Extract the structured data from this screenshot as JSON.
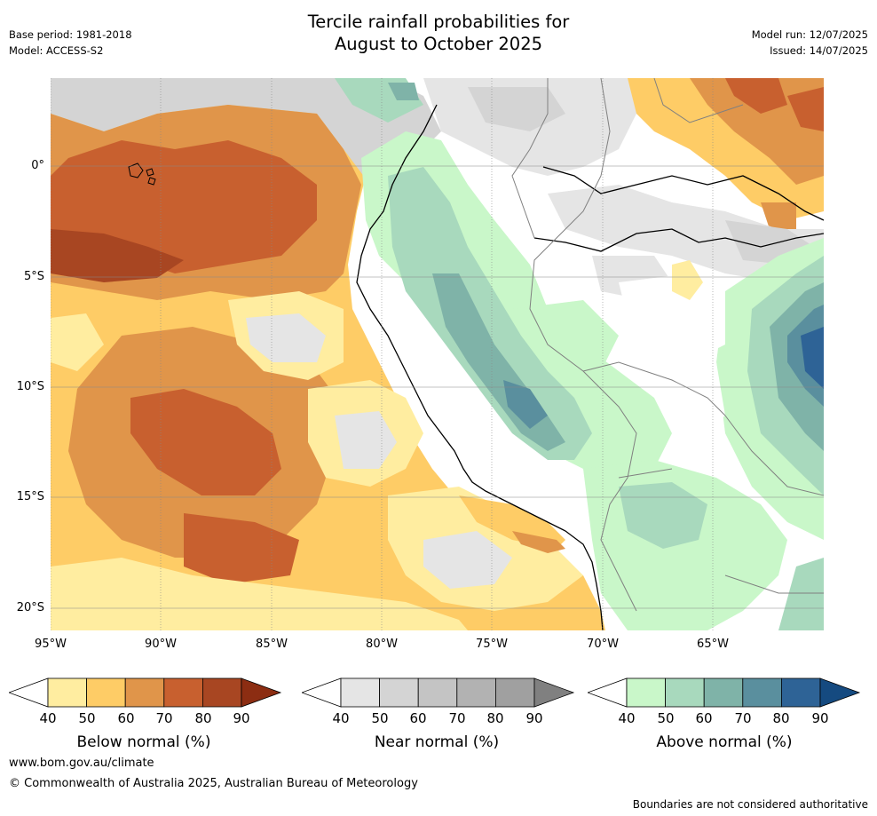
{
  "title": {
    "line1": "Tercile rainfall probabilities for",
    "line2": "August to October 2025"
  },
  "meta_left": {
    "base_period": "Base period: 1981-2018",
    "model": "Model: ACCESS-S2"
  },
  "meta_right": {
    "model_run": "Model run: 12/07/2025",
    "issued": "Issued: 14/07/2025"
  },
  "map": {
    "lat_labels": [
      "0°",
      "5°S",
      "10°S",
      "15°S",
      "20°S"
    ],
    "lon_labels": [
      "95°W",
      "90°W",
      "85°W",
      "80°W",
      "75°W",
      "70°W",
      "65°W"
    ]
  },
  "colorbars": [
    {
      "name": "below",
      "title": "Below normal (%)",
      "ticks": [
        "40",
        "50",
        "60",
        "70",
        "80",
        "90"
      ],
      "colors": [
        "#ffffff",
        "#ffeda0",
        "#fecc66",
        "#e0954a",
        "#c8602f",
        "#a84622",
        "#8c2d12"
      ]
    },
    {
      "name": "near",
      "title": "Near normal (%)",
      "ticks": [
        "40",
        "50",
        "60",
        "70",
        "80",
        "90"
      ],
      "colors": [
        "#ffffff",
        "#e5e5e5",
        "#d4d4d4",
        "#c4c4c4",
        "#b2b2b2",
        "#a0a0a0",
        "#808080"
      ]
    },
    {
      "name": "above",
      "title": "Above normal (%)",
      "ticks": [
        "40",
        "50",
        "60",
        "70",
        "80",
        "90"
      ],
      "colors": [
        "#ffffff",
        "#c9f7c9",
        "#a8d9bd",
        "#7fb3a8",
        "#5a8f9e",
        "#2e6396",
        "#154a80"
      ]
    }
  ],
  "footer": {
    "website": "www.bom.gov.au/climate",
    "copyright": "© Commonwealth of Australia 2025, Australian Bureau of Meteorology",
    "note": "Boundaries are not considered authoritative"
  }
}
